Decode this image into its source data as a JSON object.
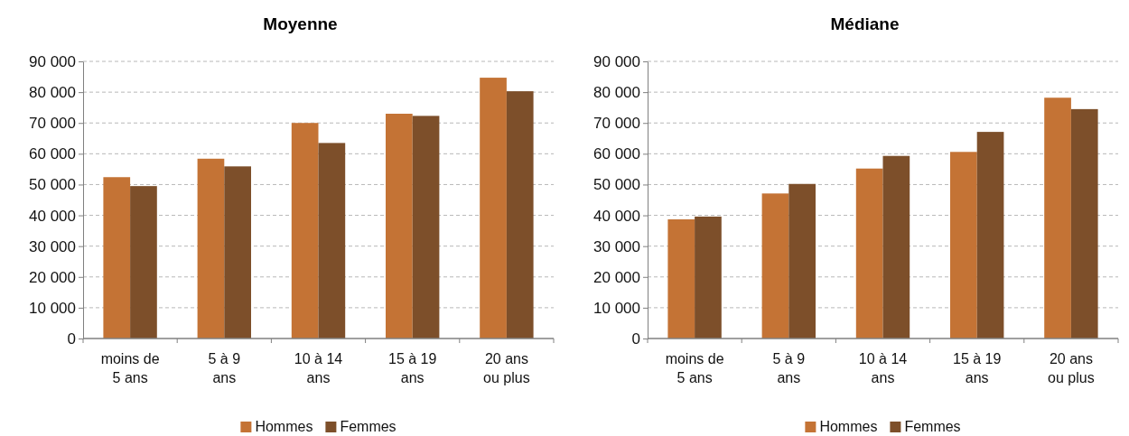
{
  "chart_data": [
    {
      "type": "bar",
      "title": "Moyenne",
      "categories": [
        "moins de\n5 ans",
        "5 à 9\nans",
        "10 à 14\nans",
        "15 à 19\nans",
        "20 ans\nou plus"
      ],
      "series": [
        {
          "name": "Hommes",
          "color": "#c47335",
          "values": [
            52400,
            58400,
            70000,
            73000,
            84700
          ]
        },
        {
          "name": "Femmes",
          "color": "#7d4f2a",
          "values": [
            49500,
            55900,
            63500,
            72300,
            80300
          ]
        }
      ],
      "ylim": [
        0,
        90000
      ],
      "yticks": [
        {
          "value": 0,
          "label": "0"
        },
        {
          "value": 10000,
          "label": "10 000"
        },
        {
          "value": 20000,
          "label": "20 000"
        },
        {
          "value": 30000,
          "label": "30 000"
        },
        {
          "value": 40000,
          "label": "40 000"
        },
        {
          "value": 50000,
          "label": "50 000"
        },
        {
          "value": 60000,
          "label": "60 000"
        },
        {
          "value": 70000,
          "label": "70 000"
        },
        {
          "value": 80000,
          "label": "80 000"
        },
        {
          "value": 90000,
          "label": "90 000"
        }
      ],
      "grid": "y",
      "legend": "bottom"
    },
    {
      "type": "bar",
      "title": "Médiane",
      "categories": [
        "moins de\n5 ans",
        "5 à 9\nans",
        "10 à 14\nans",
        "15 à 19\nans",
        "20 ans\nou plus"
      ],
      "series": [
        {
          "name": "Hommes",
          "color": "#c47335",
          "values": [
            38700,
            47100,
            55200,
            60600,
            78200
          ]
        },
        {
          "name": "Femmes",
          "color": "#7d4f2a",
          "values": [
            39600,
            50200,
            59300,
            67100,
            74500
          ]
        }
      ],
      "ylim": [
        0,
        90000
      ],
      "yticks": [
        {
          "value": 0,
          "label": "0"
        },
        {
          "value": 10000,
          "label": "10 000"
        },
        {
          "value": 20000,
          "label": "20 000"
        },
        {
          "value": 30000,
          "label": "30 000"
        },
        {
          "value": 40000,
          "label": "40 000"
        },
        {
          "value": 50000,
          "label": "50 000"
        },
        {
          "value": 60000,
          "label": "60 000"
        },
        {
          "value": 70000,
          "label": "70 000"
        },
        {
          "value": 80000,
          "label": "80 000"
        },
        {
          "value": 90000,
          "label": "90 000"
        }
      ],
      "grid": "y",
      "legend": "bottom"
    }
  ]
}
